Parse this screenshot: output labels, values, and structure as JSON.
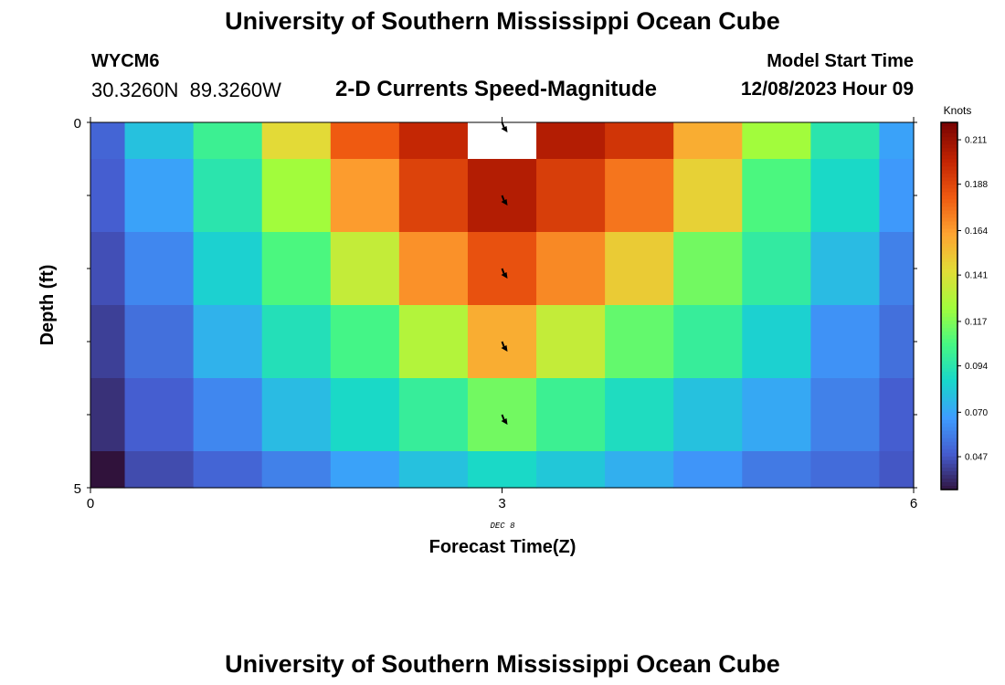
{
  "header": {
    "title": "University of Southern Mississippi Ocean Cube",
    "station": "WYCM6",
    "coordinates": "30.3260N  89.3260W",
    "subtitle": "2-D Currents Speed-Magnitude",
    "model_start_label": "Model Start Time",
    "model_start_value": "12/08/2023 Hour 09"
  },
  "footer": {
    "title": "University of Southern Mississippi Ocean Cube"
  },
  "chart_data": {
    "type": "heatmap",
    "xlabel": "Forecast Time(Z)",
    "ylabel": "Depth (ft)",
    "x_ticks": [
      "0",
      "3",
      "6"
    ],
    "x_date_label": "DEC 8",
    "y_ticks": [
      "0",
      "5"
    ],
    "xlim": [
      0,
      6
    ],
    "ylim": [
      0,
      5
    ],
    "columns_x": [
      0,
      0.5,
      1,
      1.5,
      2,
      2.5,
      3,
      3.5,
      4,
      4.5,
      5,
      5.5,
      6
    ],
    "rows_depth": [
      0,
      1,
      2,
      3,
      4,
      5
    ],
    "values": [
      [
        0.052,
        0.08,
        0.102,
        0.145,
        0.182,
        0.2,
        null,
        0.205,
        0.195,
        0.16,
        0.125,
        0.095,
        0.07
      ],
      [
        0.05,
        0.07,
        0.095,
        0.125,
        0.165,
        0.19,
        0.205,
        0.192,
        0.175,
        0.148,
        0.107,
        0.088,
        0.067
      ],
      [
        0.046,
        0.062,
        0.085,
        0.107,
        0.135,
        0.168,
        0.185,
        0.17,
        0.15,
        0.115,
        0.098,
        0.078,
        0.06
      ],
      [
        0.042,
        0.055,
        0.075,
        0.092,
        0.105,
        0.13,
        0.16,
        0.135,
        0.112,
        0.1,
        0.085,
        0.065,
        0.055
      ],
      [
        0.038,
        0.05,
        0.062,
        0.078,
        0.088,
        0.1,
        0.115,
        0.102,
        0.09,
        0.08,
        0.072,
        0.06,
        0.05
      ],
      [
        0.03,
        0.045,
        0.052,
        0.06,
        0.07,
        0.08,
        0.088,
        0.082,
        0.074,
        0.066,
        0.058,
        0.054,
        0.048
      ]
    ],
    "vectors": [
      {
        "x": 3,
        "depth": 0
      },
      {
        "x": 3,
        "depth": 1
      },
      {
        "x": 3,
        "depth": 2
      },
      {
        "x": 3,
        "depth": 3
      },
      {
        "x": 3,
        "depth": 4
      }
    ],
    "colorbar": {
      "label": "Knots",
      "ticks": [
        "0.211",
        "0.188",
        "0.164",
        "0.141",
        "0.117",
        "0.094",
        "0.070",
        "0.047"
      ],
      "min": 0.03,
      "max": 0.22
    },
    "colors": {
      "no_data": "#ffffff"
    }
  }
}
